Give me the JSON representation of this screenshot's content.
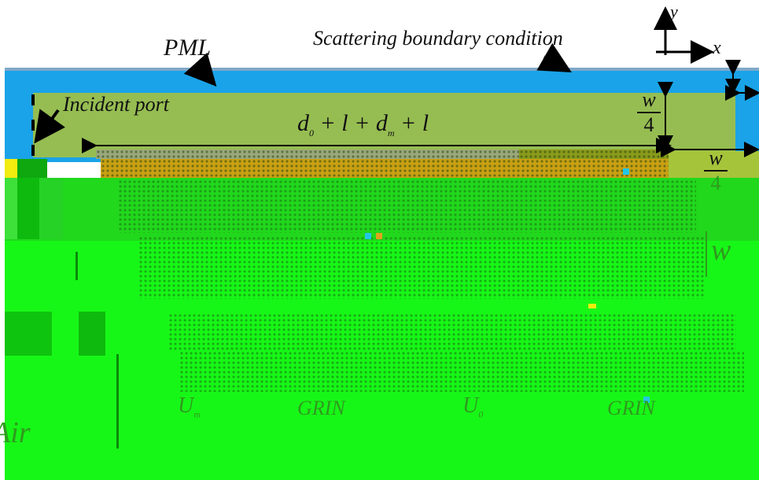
{
  "labels": {
    "pml": "PML",
    "scattering_bc": "Scattering boundary condition",
    "incident_port": "Incident port",
    "axis_x": "x",
    "axis_y": "y",
    "length_d0": "d",
    "length_d0_sub": "0",
    "length_rest": "+ l + d",
    "length_dm_sub": "m",
    "length_tail": "+ l",
    "frac_w": "w",
    "frac_4": "4",
    "right_w": "w",
    "right_4": "4",
    "w_middle": "w",
    "u_m": "U",
    "u_m_sub": "m",
    "u_0": "U",
    "u_0_sub": "0",
    "grin_1": "GRIN",
    "grin_2": "GRIN",
    "air": "Air"
  },
  "colors": {
    "pml_blue": "#1aa3e8",
    "domain_olive": "#96bd52",
    "green_bright": "#17f717",
    "green_mid": "#21d81c",
    "green_dark": "#0fa80f",
    "yellow_strip": "#f2ec0f",
    "arrow_black": "#000000"
  }
}
